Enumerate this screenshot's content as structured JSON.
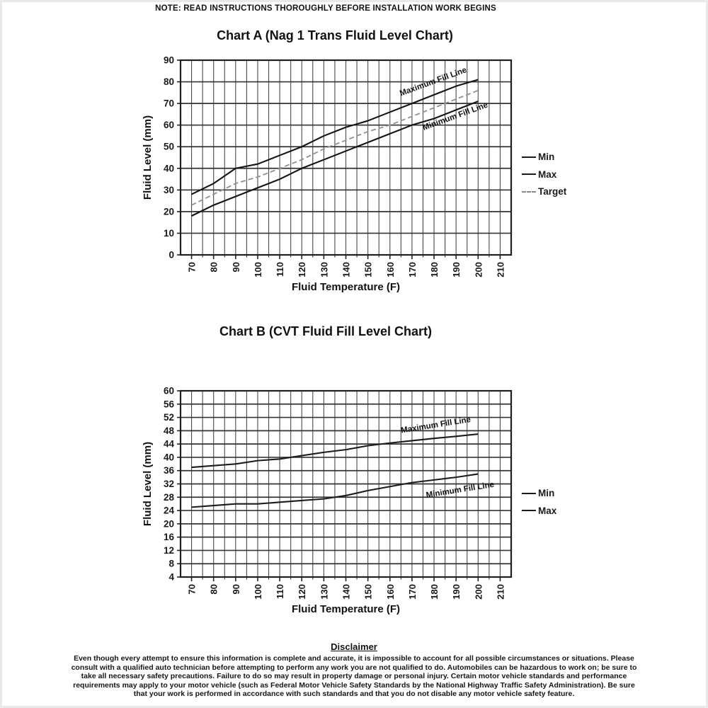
{
  "page": {
    "note": "NOTE: READ INSTRUCTIONS THOROUGHLY BEFORE INSTALLATION WORK BEGINS",
    "disclaimer": {
      "title": "Disclaimer",
      "body": "Even though every attempt to ensure this information is complete and accurate, it is impossible to account for all possible circumstances or situations.  Please consult with a qualified auto technician before attempting to perform any work you are not qualified to do.  Automobiles can be hazardous to work on; be sure to take all necessary safety precautions.  Failure to do so may result in property damage or personal injury.  Certain motor vehicle standards and performance requirements may apply to your motor vehicle (such as Federal Motor Vehicle Safety Standards by the National Highway Traffic Safety Administration).  Be sure that your work is performed in accordance with such standards and that you do not disable any motor vehicle safety feature."
    }
  },
  "chart_data": [
    {
      "type": "line",
      "title": "Chart A (Nag 1 Trans Fluid Level Chart)",
      "xlabel": "Fluid Temperature (F)",
      "ylabel": "Fluid Level (mm)",
      "xlim": [
        65,
        215
      ],
      "ylim": [
        0,
        90
      ],
      "x_ticks": [
        70,
        80,
        90,
        100,
        110,
        120,
        130,
        140,
        150,
        160,
        170,
        180,
        190,
        200,
        210
      ],
      "y_ticks": [
        0,
        10,
        20,
        30,
        40,
        50,
        60,
        70,
        80,
        90
      ],
      "x_grid_step": 5,
      "y_grid_step": 10,
      "grid": true,
      "legend_position": "right",
      "x": [
        70,
        80,
        90,
        100,
        110,
        120,
        130,
        140,
        150,
        160,
        170,
        180,
        190,
        200
      ],
      "series": [
        {
          "name": "Max",
          "style": "solid",
          "color": "#141414",
          "values": [
            28,
            33,
            40,
            42,
            46,
            50,
            55,
            59,
            62,
            66,
            70,
            74,
            78,
            81
          ]
        },
        {
          "name": "Target",
          "style": "dashed",
          "color": "#8f8f8f",
          "values": [
            23,
            28,
            33,
            36,
            40,
            44,
            49,
            53,
            57,
            60,
            64,
            68,
            72,
            76
          ]
        },
        {
          "name": "Min",
          "style": "solid",
          "color": "#141414",
          "values": [
            18,
            23,
            27,
            31,
            35,
            40,
            44,
            48,
            52,
            56,
            60,
            63,
            67,
            71
          ]
        }
      ],
      "legend": [
        {
          "label": "Min",
          "style": "solid"
        },
        {
          "label": "Max",
          "style": "solid"
        },
        {
          "label": "Target",
          "style": "dashed"
        }
      ],
      "annotations": [
        {
          "text": "Maximum Fill Line",
          "x": 180,
          "y": 79,
          "angle": -20
        },
        {
          "text": "Minimum Fill Line",
          "x": 190,
          "y": 63,
          "angle": -20
        }
      ]
    },
    {
      "type": "line",
      "title": "Chart B (CVT Fluid Fill Level Chart)",
      "xlabel": "Fluid Temperature (F)",
      "ylabel": "Fluid Level (mm)",
      "xlim": [
        65,
        215
      ],
      "ylim": [
        4,
        60
      ],
      "x_ticks": [
        70,
        80,
        90,
        100,
        110,
        120,
        130,
        140,
        150,
        160,
        170,
        180,
        190,
        200,
        210
      ],
      "y_ticks": [
        4,
        8,
        12,
        16,
        20,
        24,
        28,
        32,
        36,
        40,
        44,
        48,
        52,
        56,
        60
      ],
      "x_grid_step": 5,
      "y_grid_step": 4,
      "grid": true,
      "legend_position": "right",
      "x": [
        70,
        80,
        90,
        100,
        110,
        120,
        130,
        140,
        150,
        160,
        170,
        180,
        190,
        200
      ],
      "series": [
        {
          "name": "Max",
          "style": "solid",
          "color": "#1c1c1c",
          "values": [
            37,
            37.5,
            38,
            39,
            39.5,
            40.5,
            41.5,
            42.3,
            43.5,
            44.3,
            45,
            45.7,
            46.3,
            47
          ]
        },
        {
          "name": "Min",
          "style": "solid",
          "color": "#1c1c1c",
          "values": [
            25,
            25.5,
            26,
            26,
            26.5,
            27,
            27.5,
            28.5,
            30,
            31.2,
            32.4,
            33.2,
            34,
            35
          ]
        }
      ],
      "legend": [
        {
          "label": "Min",
          "style": "solid"
        },
        {
          "label": "Max",
          "style": "solid"
        }
      ],
      "annotations": [
        {
          "text": "Maximum Fill Line",
          "x": 181,
          "y": 49,
          "angle": -9
        },
        {
          "text": "Minimum Fill Line",
          "x": 192,
          "y": 29.5,
          "angle": -9
        }
      ]
    }
  ]
}
